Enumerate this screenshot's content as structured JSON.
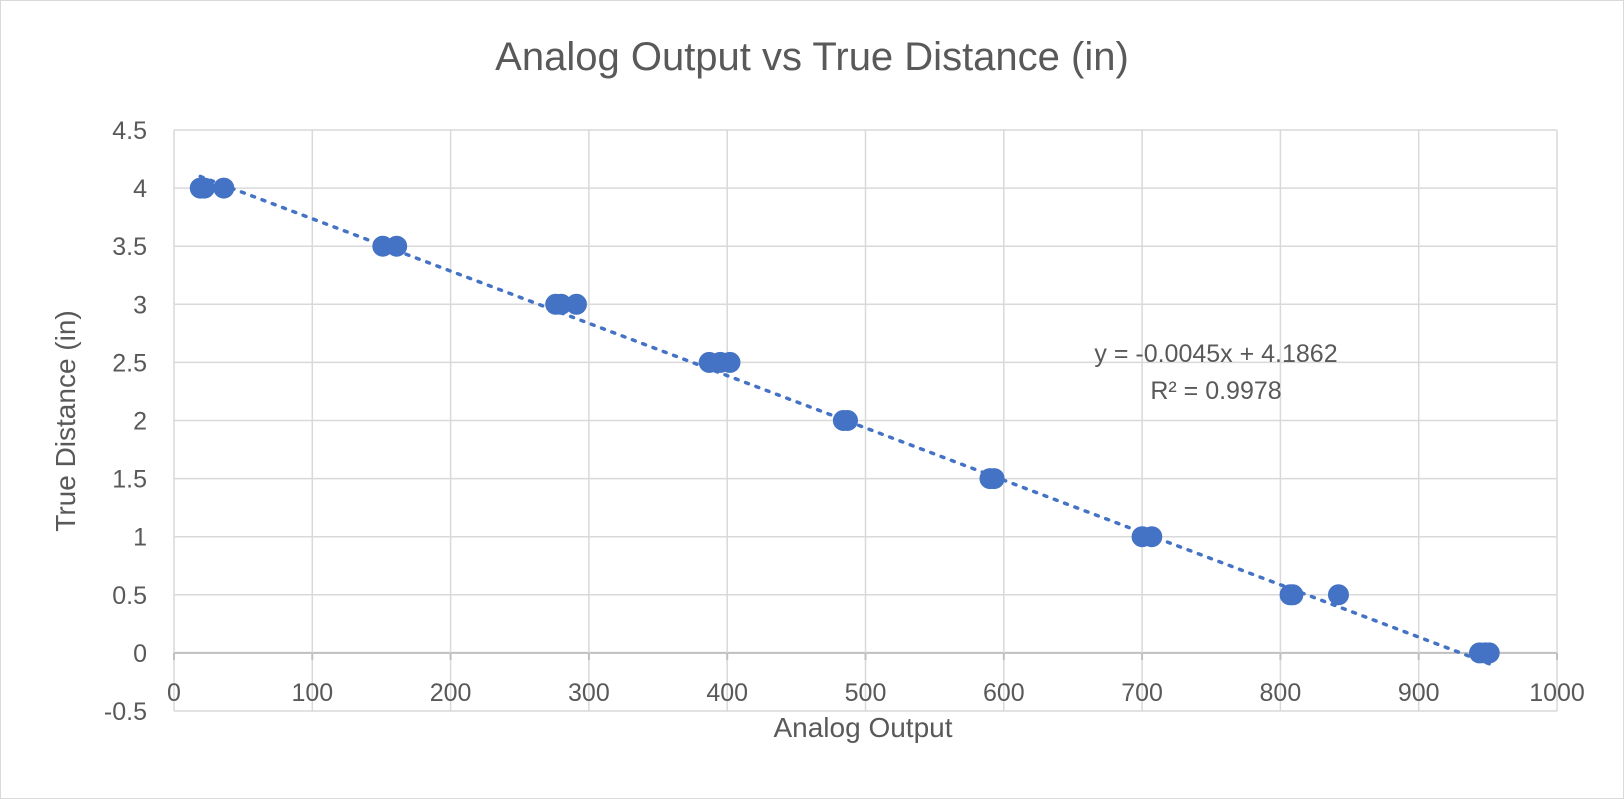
{
  "chart_data": {
    "type": "scatter",
    "title": "Analog Output vs True Distance (in)",
    "xlabel": "Analog Output",
    "ylabel": "True Distance (in)",
    "xlim": [
      0,
      1000
    ],
    "ylim": [
      -0.5,
      4.5
    ],
    "xticks": [
      0,
      100,
      200,
      300,
      400,
      500,
      600,
      700,
      800,
      900,
      1000
    ],
    "yticks": [
      -0.5,
      0,
      0.5,
      1,
      1.5,
      2,
      2.5,
      3,
      3.5,
      4,
      4.5
    ],
    "xtick_labels": [
      "0",
      "100",
      "200",
      "300",
      "400",
      "500",
      "600",
      "700",
      "800",
      "900",
      "1000"
    ],
    "ytick_labels": [
      "-0.5",
      "0",
      "0.5",
      "1",
      "1.5",
      "2",
      "2.5",
      "3",
      "3.5",
      "4",
      "4.5"
    ],
    "grid": true,
    "series": [
      {
        "color": "#4472c4",
        "points": [
          [
            19,
            4
          ],
          [
            22,
            4
          ],
          [
            36,
            4
          ],
          [
            151,
            3.5
          ],
          [
            161,
            3.5
          ],
          [
            276,
            3
          ],
          [
            280,
            3
          ],
          [
            291,
            3
          ],
          [
            387,
            2.5
          ],
          [
            395,
            2.5
          ],
          [
            402,
            2.5
          ],
          [
            484,
            2
          ],
          [
            487,
            2
          ],
          [
            590,
            1.5
          ],
          [
            593,
            1.5
          ],
          [
            700,
            1
          ],
          [
            707,
            1
          ],
          [
            807,
            0.5
          ],
          [
            809,
            0.5
          ],
          [
            842,
            0.5
          ],
          [
            944,
            0
          ],
          [
            948,
            0
          ],
          [
            951,
            0
          ]
        ]
      }
    ],
    "trendline": {
      "type": "linear",
      "slope": -0.0045,
      "intercept": 4.1862,
      "x_range": [
        19,
        951
      ],
      "color": "#4472c4",
      "style": "dotted"
    },
    "annotations": {
      "equation": "y = -0.0045x + 4.1862",
      "r_squared": "R² = 0.9978"
    }
  }
}
